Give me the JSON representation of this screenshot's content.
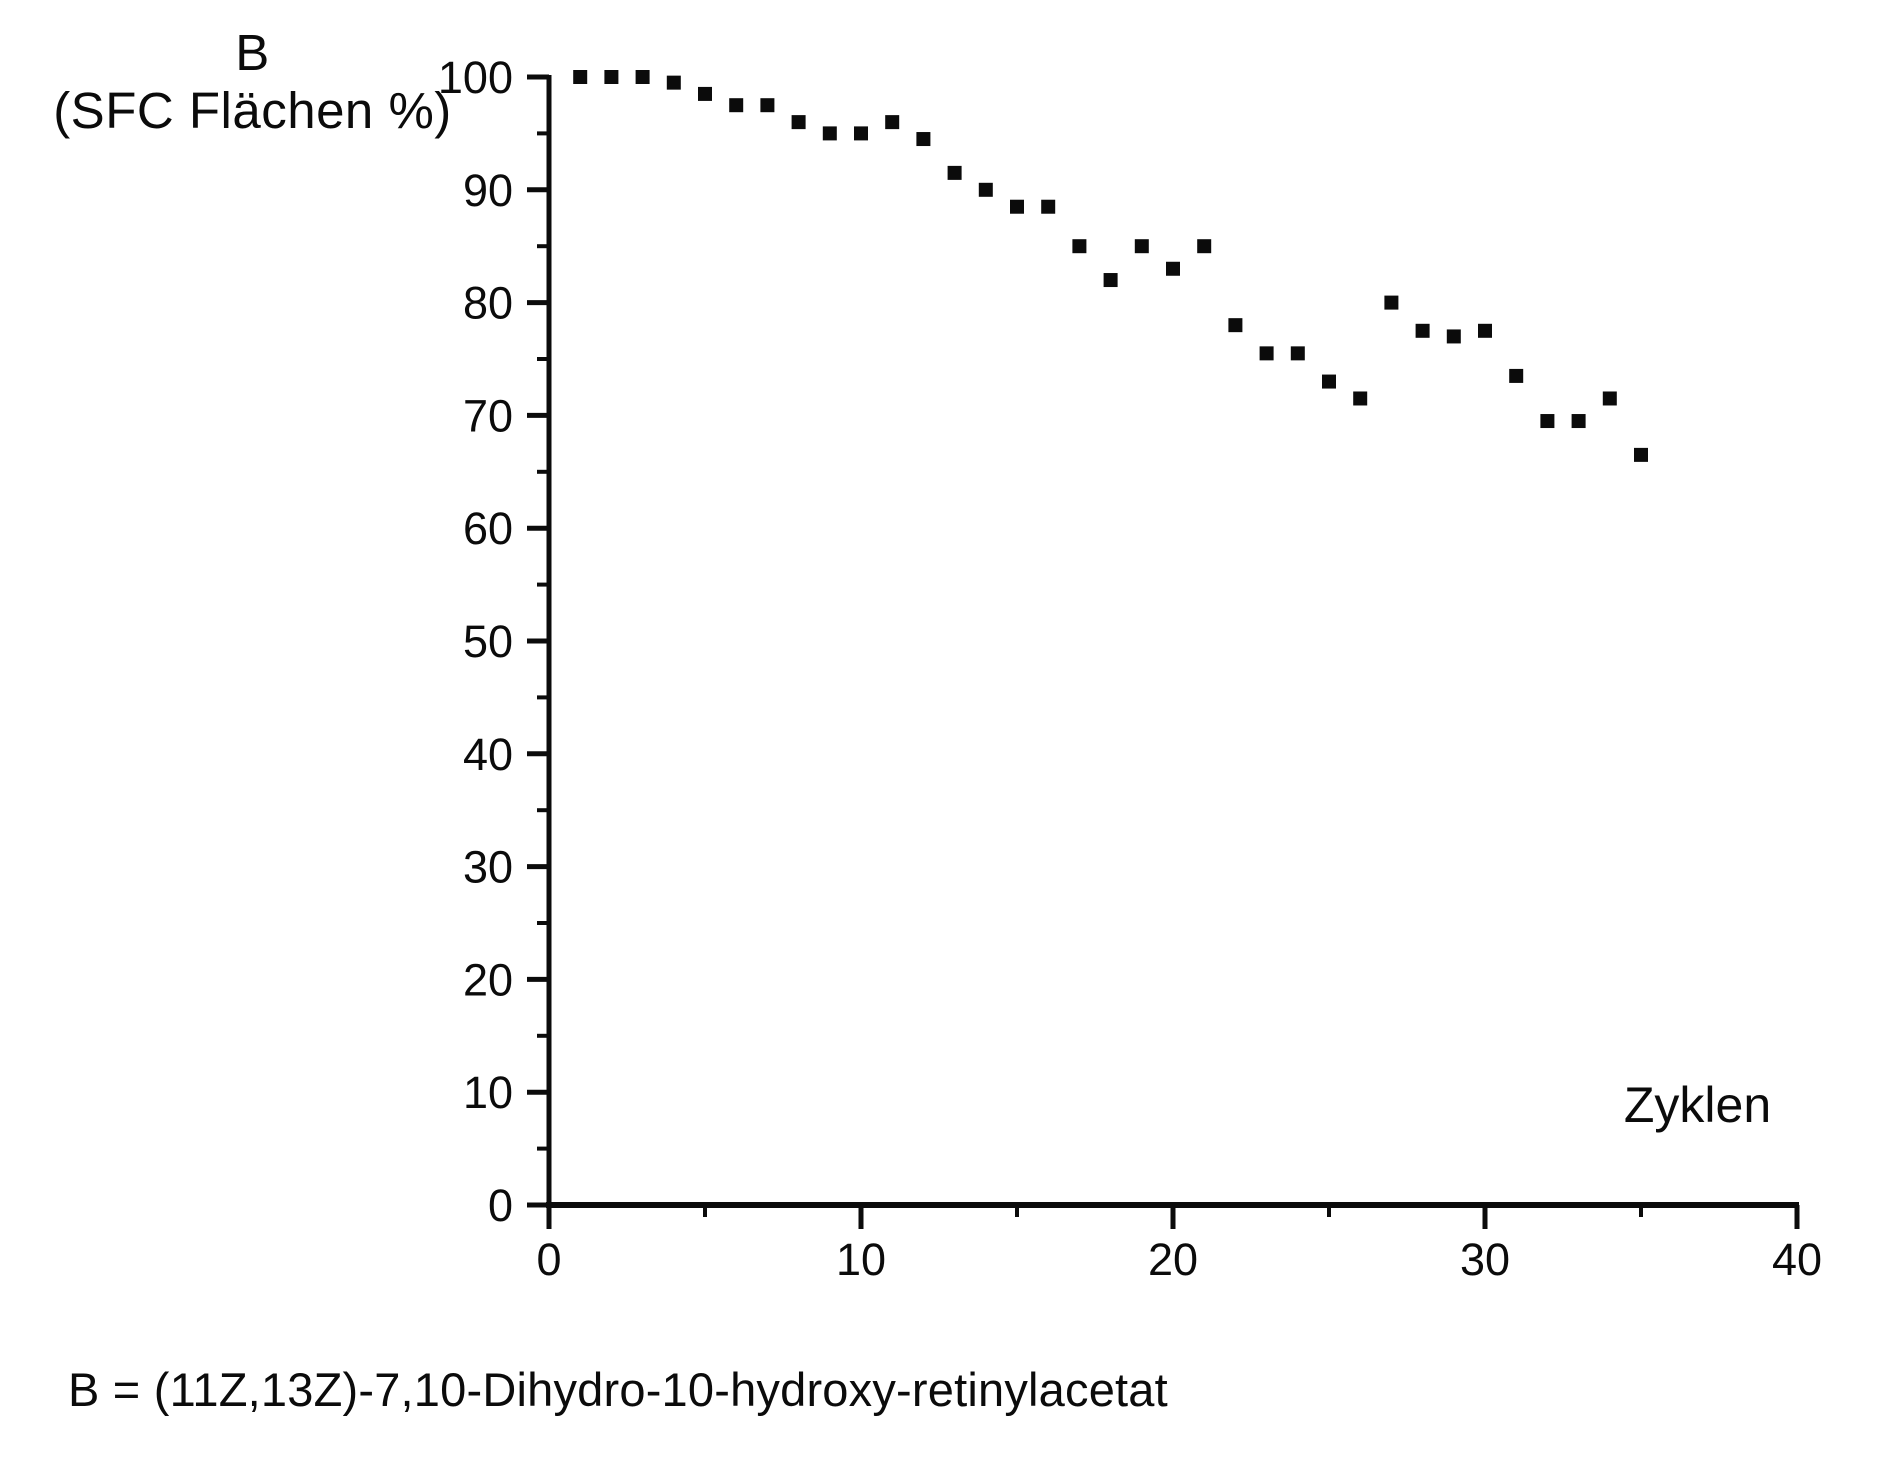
{
  "figure": {
    "y_axis_title_line1": "B",
    "y_axis_title_line2": "(SFC Flächen %)",
    "x_axis_label": "Zyklen",
    "caption": "B = (11Z,13Z)-7,10-Dihydro-10-hydroxy-retinylacetat",
    "ink_color": "#0b0b0b",
    "background_color": "#ffffff"
  },
  "chart_data": {
    "type": "scatter",
    "marker": "filled-square",
    "title": "",
    "xlabel": "Zyklen",
    "ylabel": "B (SFC Flächen %)",
    "xlim": [
      0,
      40
    ],
    "ylim": [
      0,
      100
    ],
    "grid": false,
    "legend_position": "none",
    "x_major_ticks": [
      0,
      10,
      20,
      30,
      40
    ],
    "x_minor_ticks": [
      5,
      15,
      25,
      35
    ],
    "y_major_ticks": [
      0,
      10,
      20,
      30,
      40,
      50,
      60,
      70,
      80,
      90,
      100
    ],
    "y_minor_ticks": [
      5,
      15,
      25,
      35,
      45,
      55,
      65,
      75,
      85,
      95
    ],
    "x": [
      1,
      2,
      3,
      4,
      5,
      6,
      7,
      8,
      9,
      10,
      11,
      12,
      13,
      14,
      15,
      16,
      17,
      18,
      19,
      20,
      21,
      22,
      23,
      24,
      25,
      26,
      27,
      28,
      29,
      30,
      31,
      32,
      33,
      34,
      35
    ],
    "y": [
      100,
      100,
      100,
      99.5,
      98.5,
      97.5,
      97.5,
      96,
      95,
      95,
      96,
      94.5,
      91.5,
      90,
      88.5,
      88.5,
      85,
      82,
      85,
      83,
      85,
      78,
      75.5,
      75.5,
      73,
      71.5,
      80,
      77.5,
      77,
      77.5,
      73.5,
      69.5,
      69.5,
      71.5,
      66.5
    ]
  }
}
